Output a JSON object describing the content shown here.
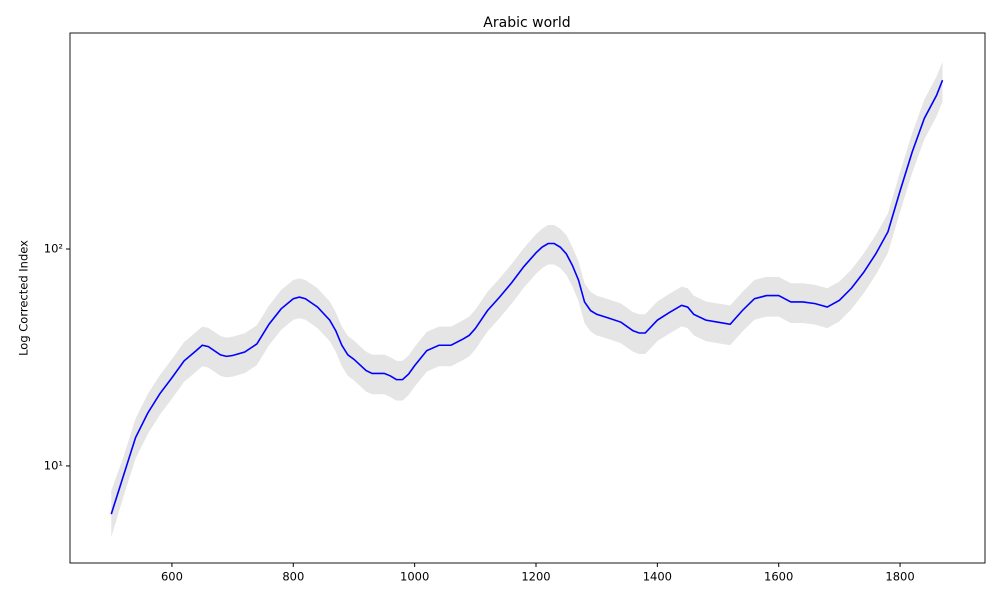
{
  "chart_data": {
    "type": "line",
    "title": "Arabic world",
    "ylabel": "Log Corrected Index",
    "log_y": true,
    "x": [
      500,
      520,
      540,
      560,
      580,
      600,
      620,
      640,
      650,
      660,
      680,
      690,
      700,
      720,
      740,
      760,
      780,
      800,
      810,
      820,
      840,
      860,
      870,
      880,
      890,
      900,
      920,
      930,
      950,
      960,
      970,
      980,
      990,
      1000,
      1020,
      1040,
      1060,
      1080,
      1090,
      1100,
      1120,
      1140,
      1160,
      1180,
      1200,
      1210,
      1220,
      1230,
      1240,
      1250,
      1260,
      1270,
      1280,
      1290,
      1300,
      1320,
      1340,
      1360,
      1370,
      1380,
      1400,
      1420,
      1440,
      1450,
      1460,
      1480,
      1500,
      1520,
      1540,
      1560,
      1580,
      1600,
      1620,
      1640,
      1660,
      1680,
      1700,
      1720,
      1740,
      1760,
      1780,
      1800,
      1820,
      1840,
      1860,
      1870
    ],
    "series": [
      {
        "color": "#0000ff",
        "band_color": "#e5e5e5",
        "values": [
          6,
          9,
          13.5,
          17.5,
          21.5,
          25.5,
          30.5,
          34,
          36,
          35.5,
          32.5,
          32,
          32.3,
          33.5,
          36.5,
          45,
          53,
          59,
          60,
          59,
          54,
          47,
          42,
          36,
          32.5,
          31,
          27.5,
          26.7,
          26.7,
          26,
          25,
          25,
          26.5,
          29,
          34,
          36,
          36,
          38.5,
          40,
          43,
          52,
          60,
          70,
          83,
          96,
          102,
          106,
          106,
          102,
          95,
          84,
          72,
          57,
          52,
          50,
          48,
          46,
          42,
          41,
          41,
          47,
          51,
          55,
          54,
          50,
          47,
          46,
          45,
          52,
          59,
          61,
          61,
          57,
          57,
          56,
          54,
          58,
          66,
          78,
          95,
          120,
          185,
          280,
          400,
          510,
          600
        ],
        "lower": [
          4.7,
          7.2,
          10.8,
          14,
          17.2,
          20.4,
          24.4,
          27.2,
          28.8,
          28.4,
          26,
          25.6,
          25.8,
          26.8,
          29.2,
          36,
          42.4,
          47.2,
          48,
          47.2,
          43.2,
          37.6,
          33.6,
          28.8,
          26,
          24.8,
          22,
          21.4,
          21.4,
          20.8,
          20,
          20,
          21.2,
          23.2,
          27.2,
          28.8,
          28.8,
          30.8,
          32,
          34.4,
          41.6,
          48,
          56,
          66.4,
          76.8,
          81.6,
          84.8,
          84.8,
          81.6,
          76,
          67.2,
          57.6,
          45.6,
          41.6,
          40,
          38.4,
          36.8,
          33.6,
          32.8,
          32.8,
          37.6,
          40.8,
          44,
          43.2,
          40,
          37.6,
          36.8,
          36,
          41.6,
          47.2,
          48.8,
          48.8,
          45.6,
          45.6,
          44.8,
          43.2,
          46.4,
          52.8,
          62.4,
          76,
          96,
          148,
          224,
          320,
          408,
          480
        ],
        "upper": [
          7.7,
          11,
          16.5,
          21.4,
          26.2,
          31.1,
          37.2,
          41.5,
          43.9,
          43.3,
          39.7,
          39,
          39.4,
          40.9,
          44.5,
          54.9,
          64.7,
          72,
          73.2,
          72,
          65.9,
          57.3,
          51.2,
          43.9,
          39.7,
          37.8,
          33.6,
          32.6,
          32.6,
          31.7,
          30.5,
          30.5,
          32.3,
          35.4,
          41.5,
          43.9,
          43.9,
          47,
          48.8,
          52.5,
          63.4,
          73.2,
          85.4,
          101,
          117,
          124,
          129,
          129,
          124,
          116,
          102,
          87.8,
          69.5,
          63.4,
          61,
          58.6,
          56.1,
          51.2,
          50,
          50,
          57.3,
          62.2,
          67.1,
          65.9,
          61,
          57.3,
          56.1,
          54.9,
          63.4,
          72,
          74.4,
          74.4,
          69.5,
          69.5,
          68.3,
          65.9,
          70.8,
          80.5,
          95.2,
          116,
          146,
          226,
          342,
          488,
          622,
          732
        ]
      }
    ],
    "xlim": [
      432,
      1940
    ],
    "ylim": [
      3.57,
      990
    ],
    "xticks": [
      600,
      800,
      1000,
      1200,
      1400,
      1600,
      1800
    ],
    "yticks": [
      {
        "value": 10,
        "label": "10¹"
      },
      {
        "value": 100,
        "label": "10²"
      }
    ]
  }
}
